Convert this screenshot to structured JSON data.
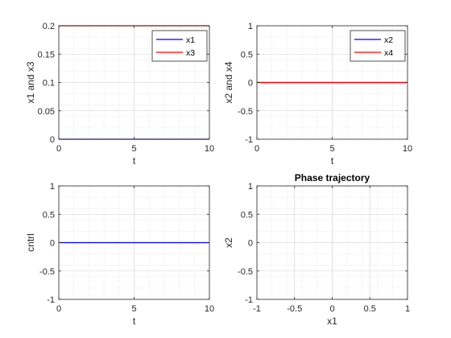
{
  "chart_data": [
    {
      "type": "line",
      "xlabel": "t",
      "ylabel": "x1 and x3",
      "xlim": [
        0,
        10
      ],
      "ylim": [
        0,
        0.2
      ],
      "xticks": [
        "0",
        "5",
        "10"
      ],
      "yticks": [
        "0",
        "0.05",
        "0.1",
        "0.15",
        "0.2"
      ],
      "grid": "on (major + minor, dotted)",
      "legend": "top-right",
      "series": [
        {
          "name": "x1",
          "color": "#0000ff",
          "x": [
            0,
            10
          ],
          "y": [
            0,
            0
          ]
        },
        {
          "name": "x3",
          "color": "#ff0000",
          "x": [
            0,
            10
          ],
          "y": [
            0.2,
            0.2
          ]
        }
      ]
    },
    {
      "type": "line",
      "xlabel": "t",
      "ylabel": "x2 and x4",
      "xlim": [
        0,
        10
      ],
      "ylim": [
        -1,
        1
      ],
      "xticks": [
        "0",
        "5",
        "10"
      ],
      "yticks": [
        "-1",
        "-0.5",
        "0",
        "0.5",
        "1"
      ],
      "grid": "on (major + minor, dotted)",
      "legend": "top-right",
      "series": [
        {
          "name": "x2",
          "color": "#0000ff",
          "x": [
            0,
            10
          ],
          "y": [
            0,
            0
          ]
        },
        {
          "name": "x4",
          "color": "#ff0000",
          "x": [
            0,
            10
          ],
          "y": [
            0,
            0
          ]
        }
      ]
    },
    {
      "type": "line",
      "xlabel": "t",
      "ylabel": "cntrl",
      "xlim": [
        0,
        10
      ],
      "ylim": [
        -1,
        1
      ],
      "xticks": [
        "0",
        "5",
        "10"
      ],
      "yticks": [
        "-1",
        "-0.5",
        "0",
        "0.5",
        "1"
      ],
      "grid": "on (major + minor, dotted)",
      "series": [
        {
          "color": "#0000ff",
          "x": [
            0,
            10
          ],
          "y": [
            0,
            0
          ]
        }
      ]
    },
    {
      "type": "line",
      "title": "Phase trajectory",
      "xlabel": "x1",
      "ylabel": "x2",
      "xlim": [
        -1,
        1
      ],
      "ylim": [
        -1,
        1
      ],
      "xticks": [
        "-1",
        "-0.5",
        "0",
        "0.5",
        "1"
      ],
      "yticks": [
        "-1",
        "-0.5",
        "0",
        "0.5",
        "1"
      ],
      "grid": "on (major + minor, dotted)",
      "series": []
    }
  ]
}
